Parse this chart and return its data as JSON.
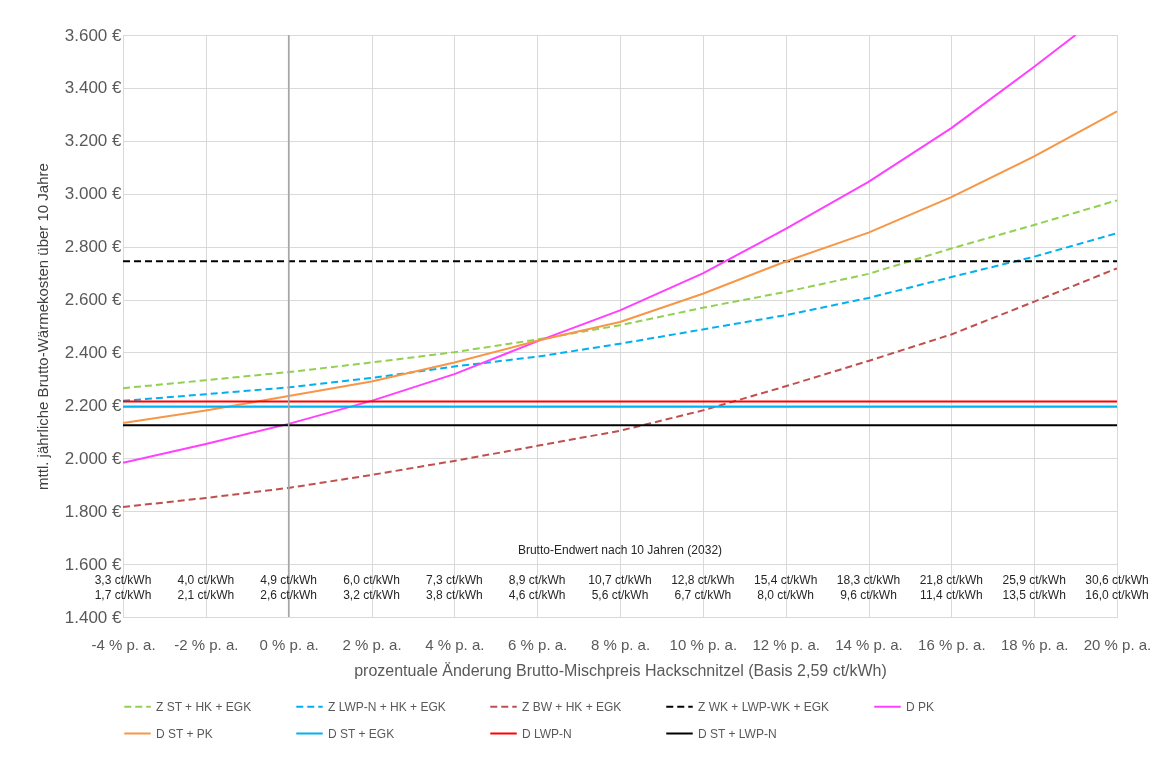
{
  "chart_data": {
    "type": "line",
    "xlabel": "prozentuale Änderung Brutto-Mischpreis Hackschnitzel (Basis 2,59 ct/kWh)",
    "ylabel": "mttl. jährliche Brutto-Wärmekosten über 10 Jahre",
    "x": [
      -4,
      -2,
      0,
      2,
      4,
      6,
      8,
      10,
      12,
      14,
      16,
      18,
      20
    ],
    "series": [
      {
        "name": "Z ST + HK + EGK",
        "color": "#92d050",
        "line_style": "dashed",
        "values": [
          2265,
          2295,
          2326,
          2362,
          2401,
          2449,
          2503,
          2569,
          2629,
          2697,
          2793,
          2882,
          2975
        ]
      },
      {
        "name": "Z LWP-N + HK + EGK",
        "color": "#00b0f0",
        "line_style": "dashed",
        "values": [
          2217,
          2242,
          2268,
          2304,
          2347,
          2384,
          2433,
          2487,
          2541,
          2606,
          2685,
          2762,
          2851
        ]
      },
      {
        "name": "Z BW + HK + EGK",
        "color": "#c0504d",
        "line_style": "dashed",
        "values": [
          1816,
          1850,
          1888,
          1937,
          1990,
          2047,
          2104,
          2181,
          2272,
          2368,
          2468,
          2592,
          2718
        ]
      },
      {
        "name": "Z WK + LWP-WK + EGK",
        "color": "#000000",
        "line_style": "dashed",
        "values": [
          2745,
          2745,
          2745,
          2745,
          2745,
          2745,
          2745,
          2745,
          2745,
          2745,
          2745,
          2745,
          2745
        ]
      },
      {
        "name": "D PK",
        "color": "#ff40ff",
        "line_style": "solid",
        "x": [
          -4,
          -2,
          0,
          2,
          4,
          6,
          8,
          10,
          12,
          14,
          16,
          18,
          19
        ],
        "values": [
          1983,
          2054,
          2130,
          2217,
          2318,
          2442,
          2559,
          2699,
          2867,
          3045,
          3248,
          3480,
          3600
        ]
      },
      {
        "name": "D ST + PK",
        "color": "#f79646",
        "line_style": "solid",
        "values": [
          2133,
          2181,
          2235,
          2290,
          2362,
          2444,
          2515,
          2622,
          2744,
          2853,
          2987,
          3141,
          3311
        ]
      },
      {
        "name": "D ST + EGK",
        "color": "#00b0f0",
        "line_style": "solid",
        "values": [
          2195,
          2195,
          2195,
          2195,
          2195,
          2195,
          2195,
          2195,
          2195,
          2195,
          2195,
          2195,
          2195
        ]
      },
      {
        "name": "D LWP-N",
        "color": "#ff0000",
        "line_style": "solid",
        "values": [
          2215,
          2215,
          2215,
          2215,
          2215,
          2215,
          2215,
          2215,
          2215,
          2215,
          2215,
          2215,
          2215
        ]
      },
      {
        "name": "D ST + LWP-N",
        "color": "#000000",
        "line_style": "solid",
        "values": [
          2125,
          2125,
          2125,
          2125,
          2125,
          2125,
          2125,
          2125,
          2125,
          2125,
          2125,
          2125,
          2125
        ]
      }
    ],
    "xlim": [
      -4,
      20
    ],
    "xticks": [
      {
        "value": -4,
        "label": "-4 % p. a."
      },
      {
        "value": -2,
        "label": "-2 % p. a."
      },
      {
        "value": 0,
        "label": "0 % p. a."
      },
      {
        "value": 2,
        "label": "2 % p. a."
      },
      {
        "value": 4,
        "label": "4 % p. a."
      },
      {
        "value": 6,
        "label": "6 % p. a."
      },
      {
        "value": 8,
        "label": "8 % p. a."
      },
      {
        "value": 10,
        "label": "10 % p. a."
      },
      {
        "value": 12,
        "label": "12 % p. a."
      },
      {
        "value": 14,
        "label": "14 % p. a."
      },
      {
        "value": 16,
        "label": "16 % p. a."
      },
      {
        "value": 18,
        "label": "18 % p. a."
      },
      {
        "value": 20,
        "label": "20 % p. a."
      }
    ],
    "ylim": [
      1400,
      3600
    ],
    "yticks": [
      {
        "value": 1400,
        "label": "1.400 €"
      },
      {
        "value": 1600,
        "label": "1.600 €"
      },
      {
        "value": 1800,
        "label": "1.800 €"
      },
      {
        "value": 2000,
        "label": "2.000 €"
      },
      {
        "value": 2200,
        "label": "2.200 €"
      },
      {
        "value": 2400,
        "label": "2.400 €"
      },
      {
        "value": 2600,
        "label": "2.600 €"
      },
      {
        "value": 2800,
        "label": "2.800 €"
      },
      {
        "value": 3000,
        "label": "3.000 €"
      },
      {
        "value": 3200,
        "label": "3.200 €"
      },
      {
        "value": 3400,
        "label": "3.400 €"
      },
      {
        "value": 3600,
        "label": "3.600 €"
      }
    ],
    "grid": true,
    "legend": "bottom",
    "marker": "none",
    "ref_lines": [
      {
        "axis": "x",
        "value": 0,
        "label": null,
        "color": "#a6a6a6"
      }
    ],
    "annotations": [
      "Brutto-Endwert nach 10 Jahren (2032)",
      "3,3 ct/kWh",
      "4,0 ct/kWh",
      "4,9 ct/kWh",
      "6,0 ct/kWh",
      "7,3 ct/kWh",
      "8,9 ct/kWh",
      "10,7 ct/kWh",
      "12,8 ct/kWh",
      "15,4 ct/kWh",
      "18,3 ct/kWh",
      "21,8 ct/kWh",
      "25,9 ct/kWh",
      "30,6 ct/kWh",
      "1,7 ct/kWh",
      "2,1 ct/kWh",
      "2,6 ct/kWh",
      "3,2 ct/kWh",
      "3,8 ct/kWh",
      "4,6 ct/kWh",
      "5,6 ct/kWh",
      "6,7 ct/kWh",
      "8,0 ct/kWh",
      "9,6 ct/kWh",
      "11,4 ct/kWh",
      "13,5 ct/kWh",
      "16,0 ct/kWh"
    ]
  }
}
